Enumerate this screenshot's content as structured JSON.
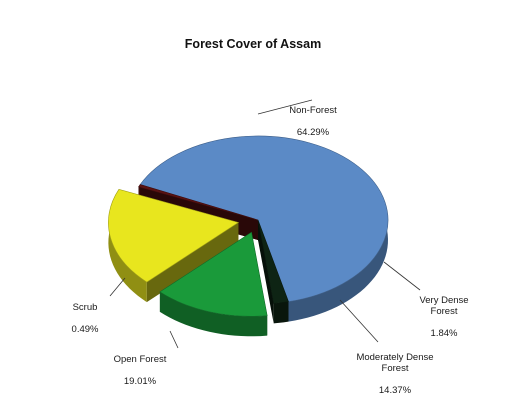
{
  "chart_data": {
    "type": "pie",
    "title": "Forest Cover of Assam",
    "slices": [
      {
        "name": "Non-Forest",
        "label": "Non-Forest",
        "pct_text": "64.29%",
        "value": 64.29,
        "color": "#5b8ac6"
      },
      {
        "name": "Very Dense Forest",
        "label": "Very Dense\nForest",
        "pct_text": "1.84%",
        "value": 1.84,
        "color": "#0e2414"
      },
      {
        "name": "Moderately Dense Forest",
        "label": "Moderately Dense\nForest",
        "pct_text": "14.37%",
        "value": 14.37,
        "color": "#1a9a3a"
      },
      {
        "name": "Open Forest",
        "label": "Open Forest",
        "pct_text": "19.01%",
        "value": 19.01,
        "color": "#e8e61e"
      },
      {
        "name": "Scrub",
        "label": "Scrub",
        "pct_text": "0.49%",
        "value": 0.49,
        "color": "#5a1212"
      }
    ],
    "exploded": [
      "Open Forest",
      "Moderately Dense Forest"
    ],
    "style": "3d",
    "legend": "none"
  }
}
